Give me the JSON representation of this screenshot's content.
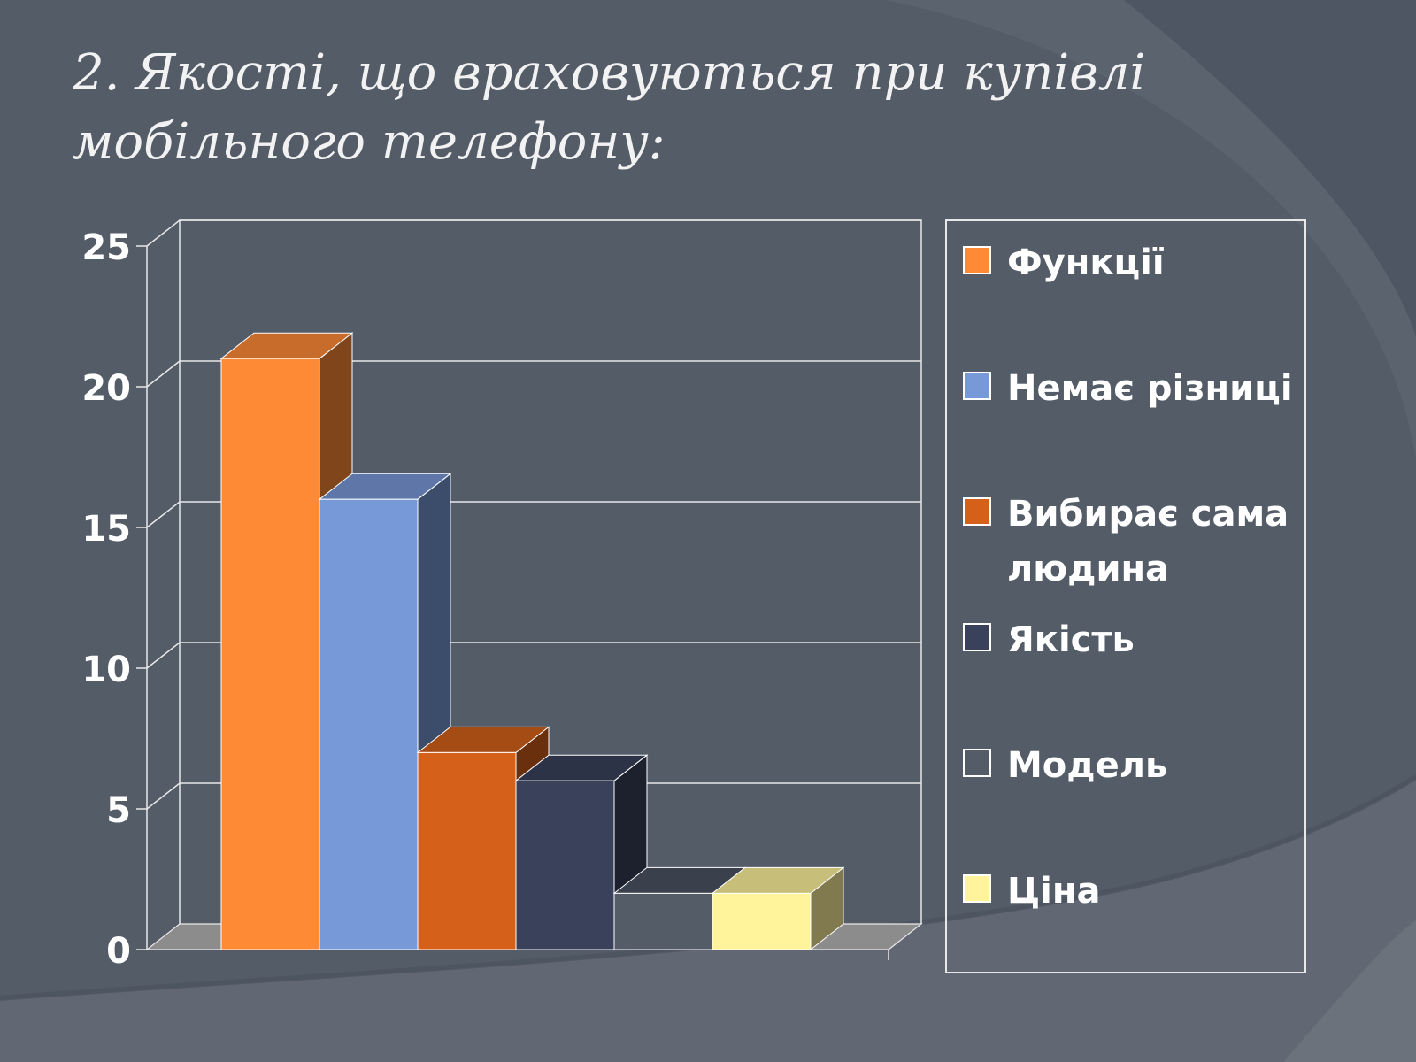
{
  "slide": {
    "title_line1": "2. Якості, що враховуються при купівлі",
    "title_line2": "мобільного телефону:"
  },
  "chart_data": {
    "type": "bar",
    "style": "3d-clustered",
    "title": "",
    "xlabel": "",
    "ylabel": "",
    "categories": [
      ""
    ],
    "ylim": [
      0,
      25
    ],
    "yticks": [
      0,
      5,
      10,
      15,
      20,
      25
    ],
    "grid": true,
    "legend_position": "right",
    "series": [
      {
        "name": "Функції",
        "values": [
          21
        ],
        "color": "#ff8a36"
      },
      {
        "name": "Немає різниці",
        "values": [
          16
        ],
        "color": "#7899d8"
      },
      {
        "name": "Вибирає сама людина",
        "values": [
          7
        ],
        "color": "#d4601a"
      },
      {
        "name": "Якість",
        "values": [
          6
        ],
        "color": "#39425a"
      },
      {
        "name": "Модель",
        "values": [
          2
        ],
        "color": "#545c68"
      },
      {
        "name": "Ціна",
        "values": [
          2
        ],
        "color": "#fff39b"
      }
    ]
  },
  "colors": {
    "background": "#545c68",
    "text": "#ffffff"
  }
}
